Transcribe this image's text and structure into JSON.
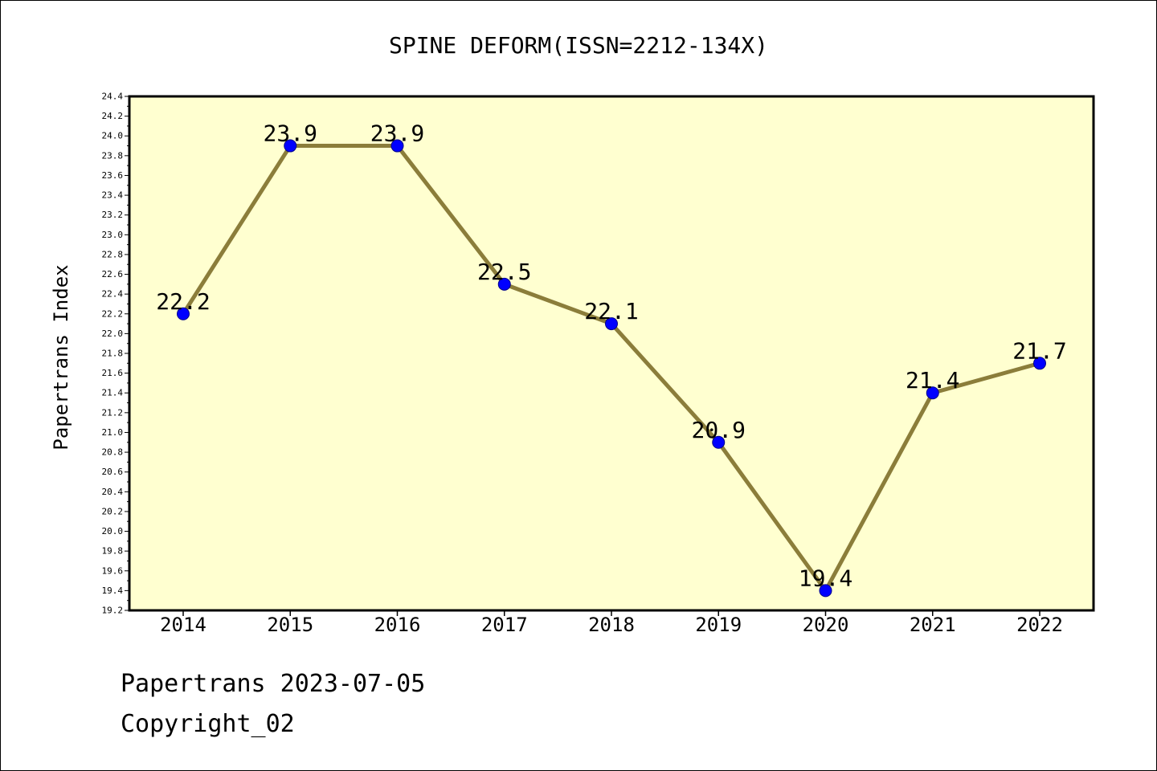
{
  "chart_data": {
    "type": "line",
    "title": "SPINE DEFORM(ISSN=2212-134X)",
    "xlabel": "",
    "ylabel": "Papertrans Index",
    "categories": [
      "2014",
      "2015",
      "2016",
      "2017",
      "2018",
      "2019",
      "2020",
      "2021",
      "2022"
    ],
    "values": [
      22.2,
      23.9,
      23.9,
      22.5,
      22.1,
      20.9,
      19.4,
      21.4,
      21.7
    ],
    "data_labels": [
      "22.2",
      "23.9",
      "23.9",
      "22.5",
      "22.1",
      "20.9",
      "19.4",
      "21.4",
      "21.7"
    ],
    "ylim": [
      19.2,
      24.4
    ],
    "y_ticks": [
      "19.2",
      "19.4",
      "19.6",
      "19.8",
      "20.0",
      "20.2",
      "20.4",
      "20.6",
      "20.8",
      "21.0",
      "21.2",
      "21.4",
      "21.6",
      "21.8",
      "22.0",
      "22.2",
      "22.4",
      "22.6",
      "22.8",
      "23.0",
      "23.2",
      "23.4",
      "23.6",
      "23.8",
      "24.0",
      "24.2",
      "24.4"
    ],
    "grid": false,
    "legend": "none",
    "colors": {
      "plot_background": "#ffffd0",
      "line": "#8b7d3a",
      "marker": "#0000ff",
      "marker_edge": "#00008b",
      "axis": "#000000"
    }
  },
  "footer": {
    "date_text": "Papertrans 2023-07-05",
    "copyright_text": "Copyright_02"
  }
}
